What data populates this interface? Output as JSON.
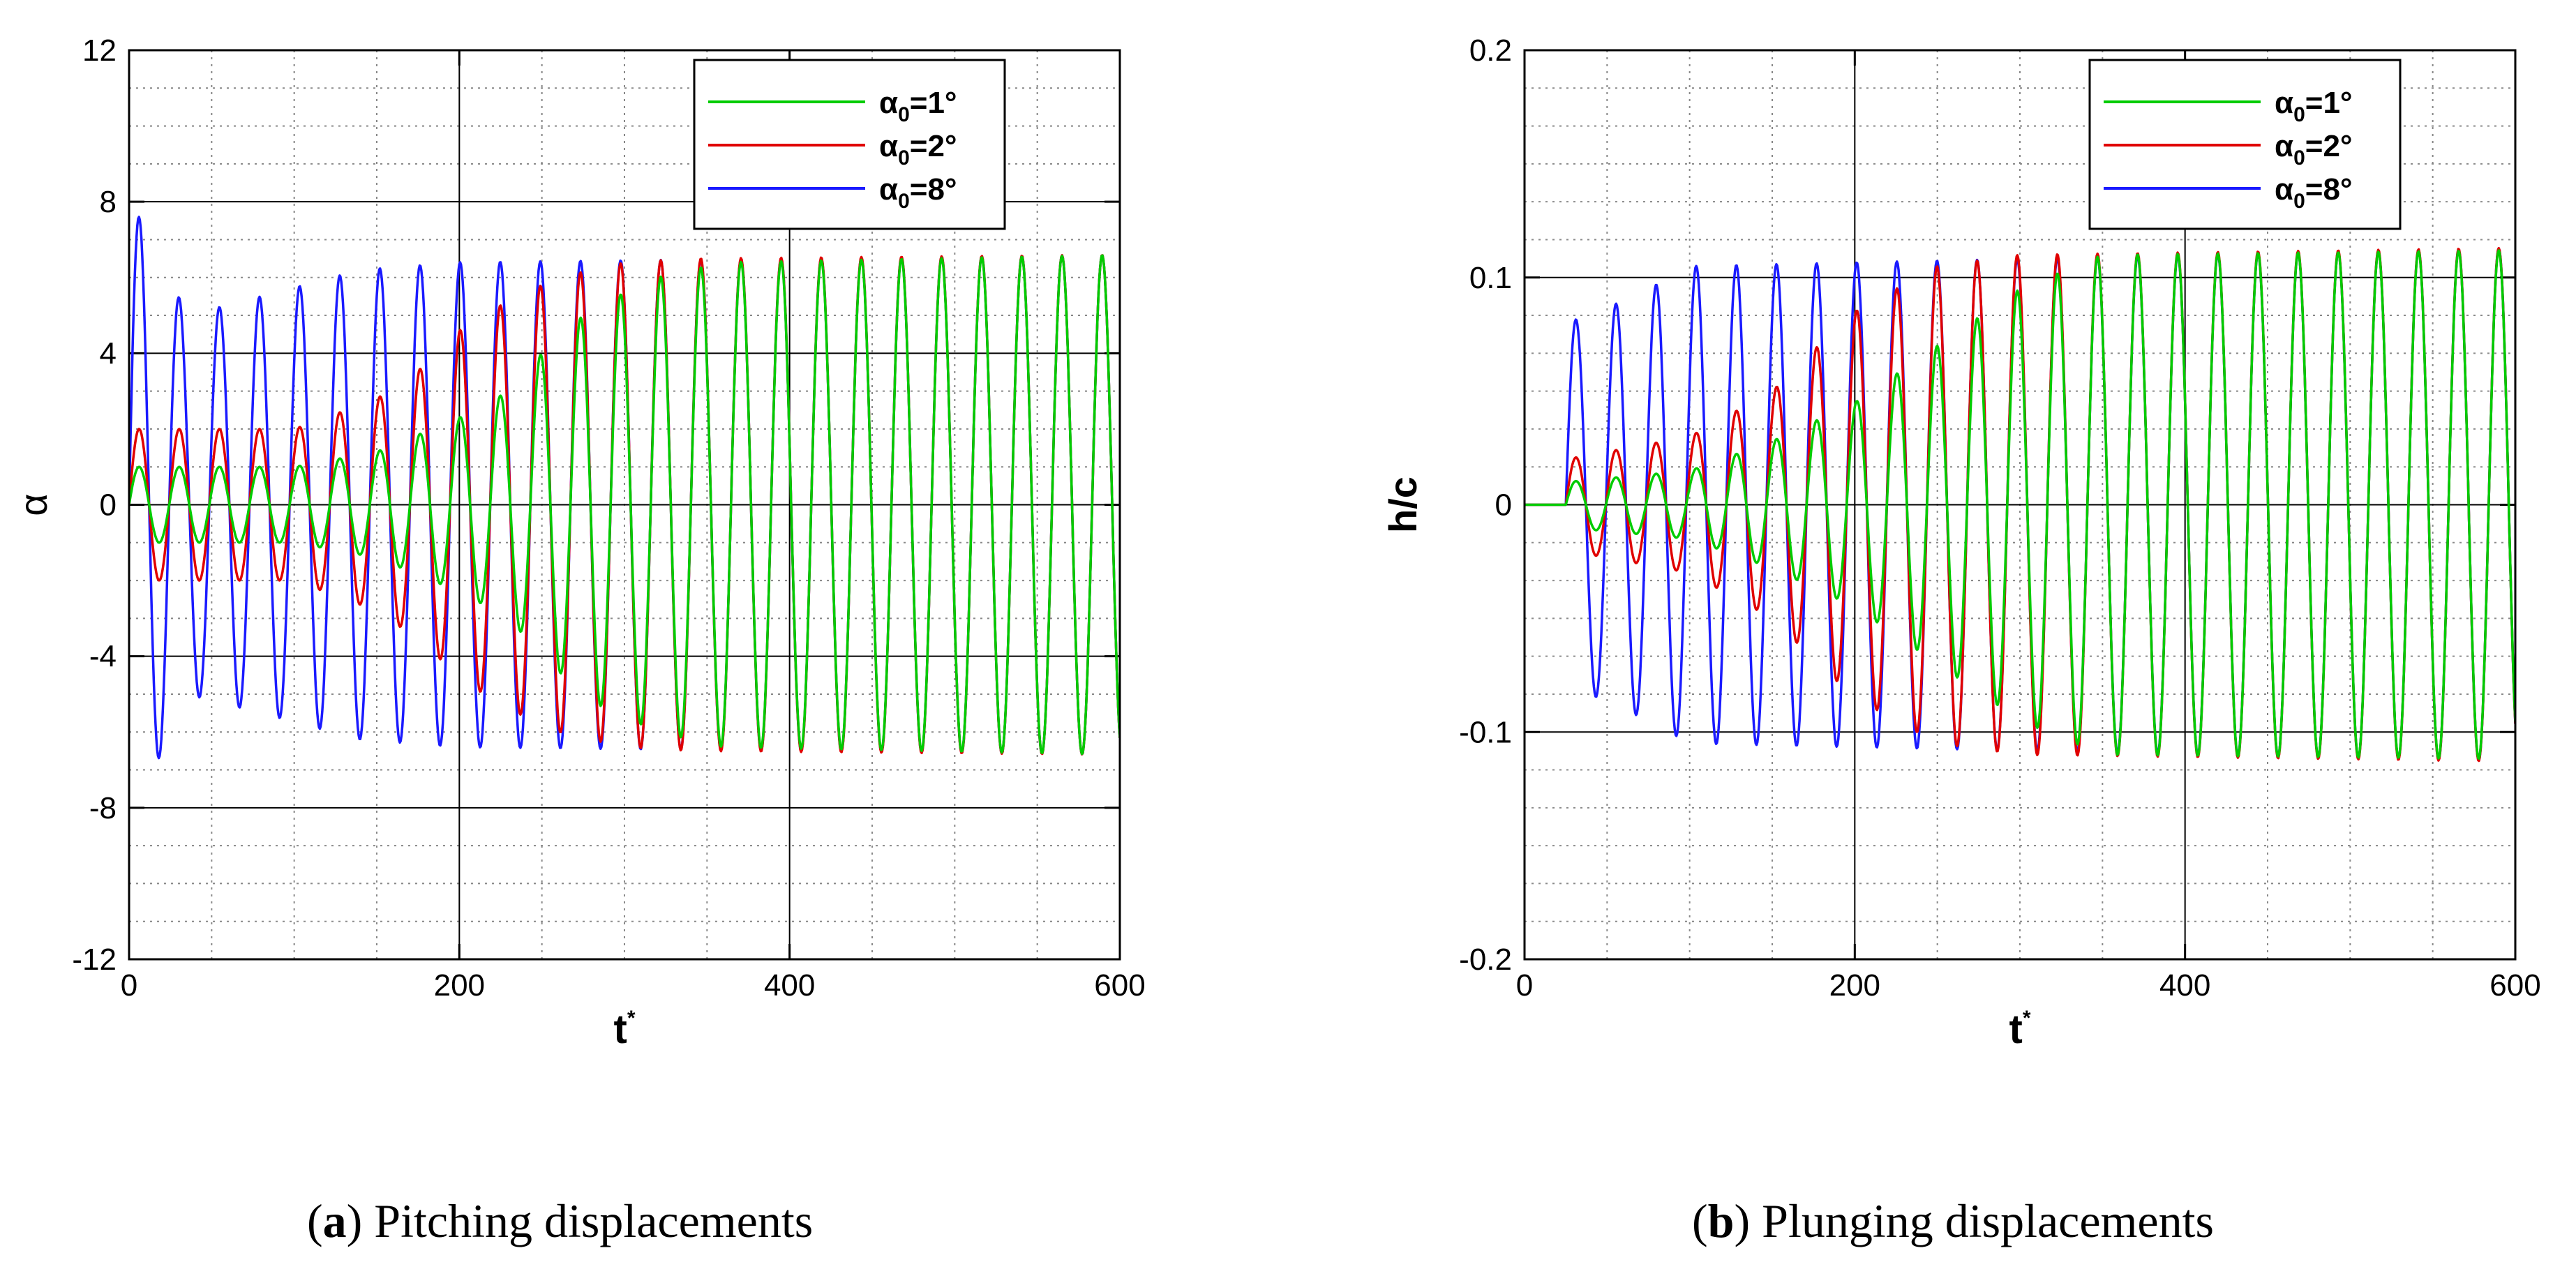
{
  "figure": {
    "colors": {
      "green": "#00cc00",
      "red": "#e00000",
      "blue": "#1a1aff",
      "axis": "#000000",
      "major_grid": "#000000",
      "minor_grid": "#888888"
    },
    "legend_param_symbol": "α",
    "legend_param_subscript": "0",
    "legend_values": [
      "=1°",
      "=2°",
      "=8°"
    ]
  },
  "captions": {
    "a": {
      "letter": "a",
      "text": ") Pitching displacements",
      "open": "("
    },
    "b": {
      "letter": "b",
      "text": ") Plunging displacements",
      "open": "("
    }
  },
  "chart_data": [
    {
      "id": "a",
      "type": "line",
      "title": "",
      "xlabel": "t",
      "xlabel_superscript": "*",
      "ylabel": "α",
      "xlim": [
        0,
        600
      ],
      "ylim": [
        -12,
        12
      ],
      "xticks": [
        0,
        200,
        400,
        600
      ],
      "xtick_labels": [
        "0",
        "200",
        "400",
        "600"
      ],
      "yticks": [
        -12,
        -8,
        -4,
        0,
        4,
        8,
        12
      ],
      "ytick_labels": [
        "-12",
        "-8",
        "-4",
        "0",
        "4",
        "8",
        "12"
      ],
      "grid": true,
      "legend": "top-right",
      "series": [
        {
          "name": "α0=1°",
          "color": "green",
          "period": 24.3,
          "onset": 0,
          "amp_start": 1.0,
          "envelope_t": [
            0,
            100,
            150,
            200,
            230,
            250,
            280,
            320,
            360,
            600
          ],
          "envelope_a": [
            1.0,
            1.0,
            1.4,
            2.3,
            3.0,
            4.0,
            5.2,
            6.0,
            6.4,
            6.6
          ]
        },
        {
          "name": "α0=2°",
          "color": "red",
          "period": 24.3,
          "onset": 0,
          "amp_start": 2.0,
          "envelope_t": [
            0,
            100,
            150,
            180,
            200,
            230,
            260,
            300,
            340,
            600
          ],
          "envelope_a": [
            2.0,
            2.0,
            2.8,
            3.7,
            4.6,
            5.4,
            6.0,
            6.4,
            6.5,
            6.6
          ]
        },
        {
          "name": "α0=8°",
          "color": "blue",
          "period": 24.3,
          "onset": 0,
          "amp_start": 8.0,
          "envelope_t": [
            0,
            15,
            35,
            80,
            140,
            200,
            600
          ],
          "envelope_a": [
            8.0,
            7.0,
            5.0,
            5.5,
            6.2,
            6.4,
            6.6
          ]
        }
      ]
    },
    {
      "id": "b",
      "type": "line",
      "title": "",
      "xlabel": "t",
      "xlabel_superscript": "*",
      "ylabel": "h/c",
      "xlim": [
        0,
        600
      ],
      "ylim": [
        -0.2,
        0.2
      ],
      "xticks": [
        0,
        200,
        400,
        600
      ],
      "xtick_labels": [
        "0",
        "200",
        "400",
        "600"
      ],
      "yticks": [
        -0.2,
        -0.1,
        0,
        0.1,
        0.2
      ],
      "ytick_labels": [
        "-0.2",
        "-0.1",
        "0",
        "0.1",
        "0.2"
      ],
      "grid": true,
      "legend": "top-right",
      "series": [
        {
          "name": "α0=1°",
          "color": "green",
          "period": 24.3,
          "onset": 25,
          "amp_start": 0.01,
          "envelope_t": [
            25,
            100,
            150,
            200,
            250,
            300,
            350,
            600
          ],
          "envelope_a": [
            0.01,
            0.015,
            0.028,
            0.045,
            0.07,
            0.095,
            0.11,
            0.112
          ]
        },
        {
          "name": "α0=2°",
          "color": "red",
          "period": 24.3,
          "onset": 25,
          "amp_start": 0.02,
          "envelope_t": [
            25,
            100,
            150,
            175,
            200,
            250,
            300,
            600
          ],
          "envelope_a": [
            0.02,
            0.03,
            0.05,
            0.068,
            0.085,
            0.105,
            0.11,
            0.113
          ]
        },
        {
          "name": "α0=8°",
          "color": "blue",
          "period": 24.3,
          "onset": 25,
          "amp_start": 0.08,
          "envelope_t": [
            25,
            45,
            75,
            100,
            600
          ],
          "envelope_a": [
            0.08,
            0.085,
            0.095,
            0.105,
            0.113
          ]
        }
      ]
    }
  ]
}
